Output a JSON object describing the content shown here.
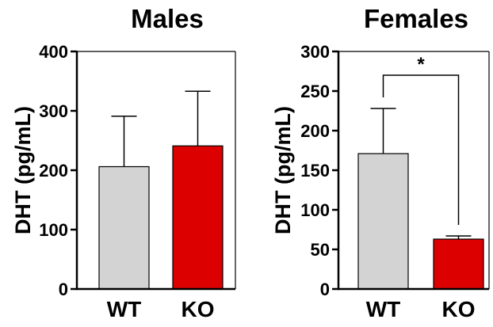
{
  "chart_data": [
    {
      "type": "bar",
      "title": "Males",
      "ylabel": "DHT (pg/mL)",
      "xlabel": "",
      "categories": [
        "WT",
        "KO"
      ],
      "values": [
        206,
        241
      ],
      "errors": [
        85,
        92
      ],
      "colors": [
        "#d3d3d3",
        "#dd0000"
      ],
      "ylim": [
        0,
        400
      ],
      "yticks": [
        0,
        100,
        200,
        300,
        400
      ],
      "significance": []
    },
    {
      "type": "bar",
      "title": "Females",
      "ylabel": "DHT (pg/mL)",
      "xlabel": "",
      "categories": [
        "WT",
        "KO"
      ],
      "values": [
        171,
        63
      ],
      "errors": [
        57,
        4
      ],
      "colors": [
        "#d3d3d3",
        "#dd0000"
      ],
      "ylim": [
        0,
        300
      ],
      "yticks": [
        0,
        50,
        100,
        150,
        200,
        250,
        300
      ],
      "significance": [
        {
          "from": 0,
          "to": 1,
          "label": "*",
          "y": 270
        }
      ]
    }
  ]
}
